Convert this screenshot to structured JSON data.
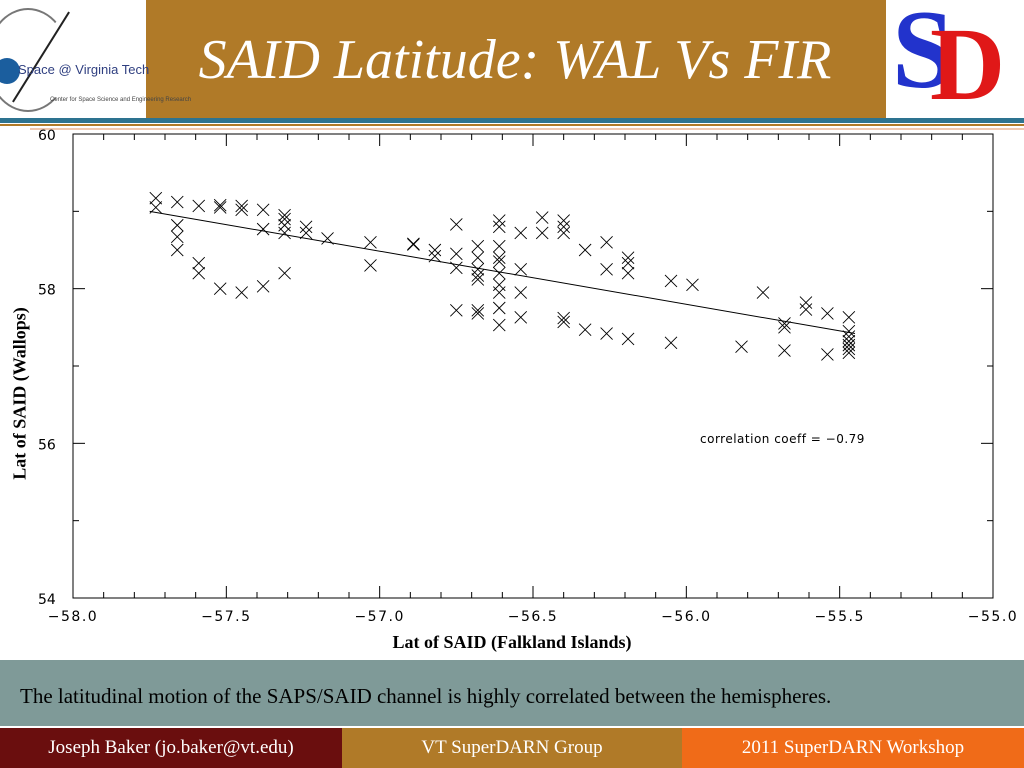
{
  "header": {
    "title": "SAID Latitude: WAL Vs FIR",
    "left_logo": {
      "line1": "Space @ Virginia Tech",
      "line2": "Center for Space Science and Engineering Research"
    },
    "right_logo": {
      "letter1": "S",
      "letter2": "D"
    }
  },
  "chart_data": {
    "type": "scatter",
    "xlabel": "Lat of SAID (Falkland Islands)",
    "ylabel": "Lat of SAID (Wallops)",
    "xlim": [
      -58.0,
      -55.0
    ],
    "ylim": [
      54,
      60
    ],
    "xticks": [
      -58.0,
      -57.5,
      -57.0,
      -56.5,
      -56.0,
      -55.5,
      -55.0
    ],
    "xtick_labels": [
      "−58.0",
      "−57.5",
      "−57.0",
      "−56.5",
      "−56.0",
      "−55.5",
      "−55.0"
    ],
    "yticks": [
      54,
      56,
      58,
      60
    ],
    "ytick_labels": [
      "54",
      "56",
      "58",
      "60"
    ],
    "marker": "x",
    "annotation": "correlation coeff = −0.79",
    "fit_line": {
      "x": [
        -57.75,
        -55.45
      ],
      "y": [
        59.0,
        57.42
      ]
    },
    "points": [
      [
        -57.73,
        59.17
      ],
      [
        -57.73,
        59.05
      ],
      [
        -57.66,
        59.12
      ],
      [
        -57.66,
        58.82
      ],
      [
        -57.66,
        58.67
      ],
      [
        -57.66,
        58.5
      ],
      [
        -57.59,
        59.07
      ],
      [
        -57.59,
        58.33
      ],
      [
        -57.59,
        58.2
      ],
      [
        -57.52,
        59.05
      ],
      [
        -57.52,
        59.08
      ],
      [
        -57.52,
        58.0
      ],
      [
        -57.45,
        59.02
      ],
      [
        -57.45,
        59.07
      ],
      [
        -57.45,
        57.95
      ],
      [
        -57.38,
        59.02
      ],
      [
        -57.38,
        58.77
      ],
      [
        -57.38,
        58.03
      ],
      [
        -57.31,
        58.95
      ],
      [
        -57.31,
        58.9
      ],
      [
        -57.31,
        58.82
      ],
      [
        -57.31,
        58.72
      ],
      [
        -57.31,
        58.2
      ],
      [
        -57.24,
        58.8
      ],
      [
        -57.24,
        58.72
      ],
      [
        -57.17,
        58.65
      ],
      [
        -57.03,
        58.6
      ],
      [
        -57.03,
        58.3
      ],
      [
        -56.89,
        58.58
      ],
      [
        -56.89,
        58.57
      ],
      [
        -56.82,
        58.5
      ],
      [
        -56.82,
        58.42
      ],
      [
        -56.75,
        58.83
      ],
      [
        -56.75,
        58.45
      ],
      [
        -56.75,
        58.27
      ],
      [
        -56.75,
        57.72
      ],
      [
        -56.68,
        58.55
      ],
      [
        -56.68,
        58.4
      ],
      [
        -56.68,
        58.25
      ],
      [
        -56.68,
        58.17
      ],
      [
        -56.68,
        58.12
      ],
      [
        -56.68,
        57.72
      ],
      [
        -56.68,
        57.68
      ],
      [
        -56.61,
        58.88
      ],
      [
        -56.61,
        58.8
      ],
      [
        -56.61,
        58.55
      ],
      [
        -56.61,
        58.4
      ],
      [
        -56.61,
        58.35
      ],
      [
        -56.61,
        58.2
      ],
      [
        -56.61,
        58.05
      ],
      [
        -56.61,
        57.95
      ],
      [
        -56.61,
        57.75
      ],
      [
        -56.61,
        57.53
      ],
      [
        -56.54,
        58.72
      ],
      [
        -56.54,
        58.25
      ],
      [
        -56.54,
        57.95
      ],
      [
        -56.54,
        57.63
      ],
      [
        -56.47,
        58.92
      ],
      [
        -56.47,
        58.72
      ],
      [
        -56.4,
        58.88
      ],
      [
        -56.4,
        58.8
      ],
      [
        -56.4,
        58.72
      ],
      [
        -56.4,
        57.62
      ],
      [
        -56.4,
        57.57
      ],
      [
        -56.33,
        58.5
      ],
      [
        -56.33,
        57.47
      ],
      [
        -56.26,
        58.6
      ],
      [
        -56.26,
        58.25
      ],
      [
        -56.26,
        57.42
      ],
      [
        -56.19,
        58.4
      ],
      [
        -56.19,
        58.33
      ],
      [
        -56.19,
        58.2
      ],
      [
        -56.19,
        57.35
      ],
      [
        -56.05,
        58.1
      ],
      [
        -56.05,
        57.3
      ],
      [
        -55.98,
        58.05
      ],
      [
        -55.82,
        57.25
      ],
      [
        -55.75,
        57.95
      ],
      [
        -55.68,
        57.55
      ],
      [
        -55.68,
        57.5
      ],
      [
        -55.68,
        57.2
      ],
      [
        -55.61,
        57.82
      ],
      [
        -55.61,
        57.73
      ],
      [
        -55.54,
        57.68
      ],
      [
        -55.54,
        57.15
      ],
      [
        -55.47,
        57.63
      ],
      [
        -55.47,
        57.45
      ],
      [
        -55.47,
        57.38
      ],
      [
        -55.47,
        57.32
      ],
      [
        -55.47,
        57.27
      ],
      [
        -55.47,
        57.22
      ],
      [
        -55.47,
        57.17
      ]
    ]
  },
  "banner": "The latitudinal motion of the SAPS/SAID channel is highly correlated between the hemispheres.",
  "footer": {
    "author": "Joseph Baker (jo.baker@vt.edu)",
    "group": "VT  SuperDARN  Group",
    "event": "2011 SuperDARN Workshop"
  },
  "colors": {
    "header": "#b07a28",
    "rule": "#2d7390",
    "banner": "#7f9a98",
    "footer_left": "#6a0e0e",
    "footer_mid": "#b07a28",
    "footer_right": "#f06b18"
  }
}
